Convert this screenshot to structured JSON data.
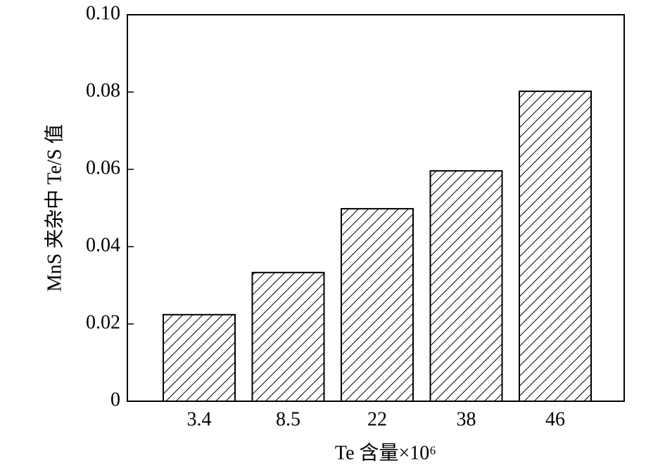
{
  "chart_data": {
    "type": "bar",
    "x_label": "Te 含量×10⁶",
    "y_label": "MnS 夹杂中 Te/S 值",
    "categories": [
      "3.4",
      "8.5",
      "22",
      "38",
      "46"
    ],
    "values": [
      0.0224,
      0.0333,
      0.0498,
      0.0596,
      0.0802
    ],
    "color": "#000000",
    "ylim": [
      0,
      0.1
    ],
    "yticks": [
      0,
      0.02,
      0.04,
      0.06,
      0.08,
      {
        "value": 0.1,
        "label": "0.10"
      }
    ]
  }
}
